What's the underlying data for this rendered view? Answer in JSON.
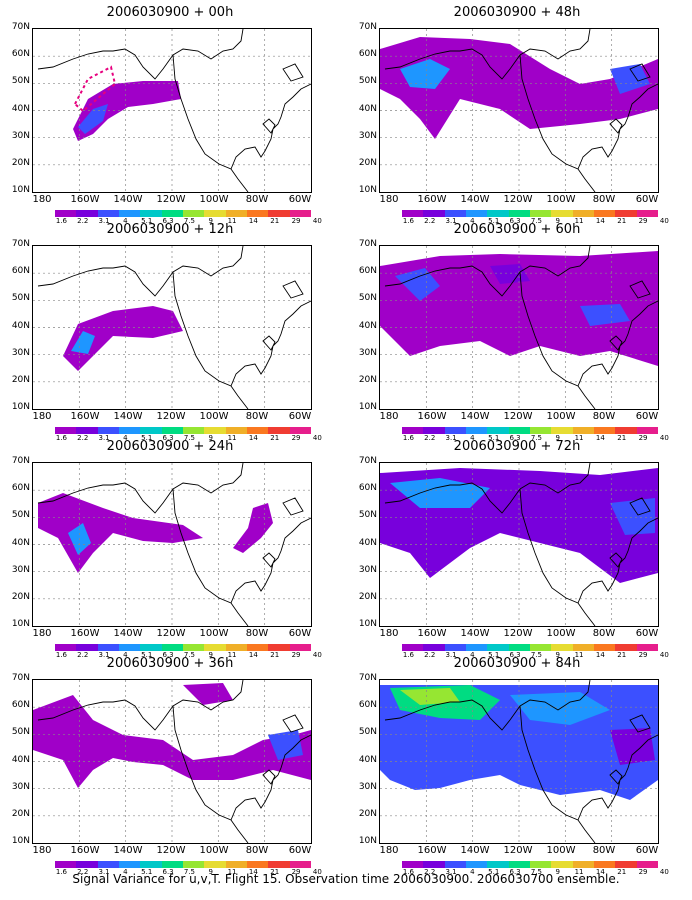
{
  "panels": [
    {
      "title": "2006030900 + 00h"
    },
    {
      "title": "2006030900 + 48h"
    },
    {
      "title": "2006030900 + 12h"
    },
    {
      "title": "2006030900 + 60h"
    },
    {
      "title": "2006030900 + 24h"
    },
    {
      "title": "2006030900 + 72h"
    },
    {
      "title": "2006030900 + 36h"
    },
    {
      "title": "2006030900 + 84h"
    }
  ],
  "lat_labels": [
    "70N",
    "60N",
    "50N",
    "40N",
    "30N",
    "20N",
    "10N"
  ],
  "lon_labels": [
    "180",
    "160W",
    "140W",
    "120W",
    "100W",
    "80W",
    "60W"
  ],
  "colorbar": {
    "labels": [
      "1.6",
      "2.2",
      "3.1",
      "4",
      "5.1",
      "6.3",
      "7.5",
      "9",
      "11",
      "14",
      "21",
      "29",
      "40"
    ],
    "colors": [
      "#a000c8",
      "#7800dc",
      "#3c50ff",
      "#1e96ff",
      "#00c8c8",
      "#00dc82",
      "#96e632",
      "#e6dc32",
      "#f0af28",
      "#fa7820",
      "#f03c32",
      "#e61e8c"
    ]
  },
  "footer": "Signal Variance for u,v,T. Flight 15. Observation time 2006030900. 2006030700 ensemble."
}
